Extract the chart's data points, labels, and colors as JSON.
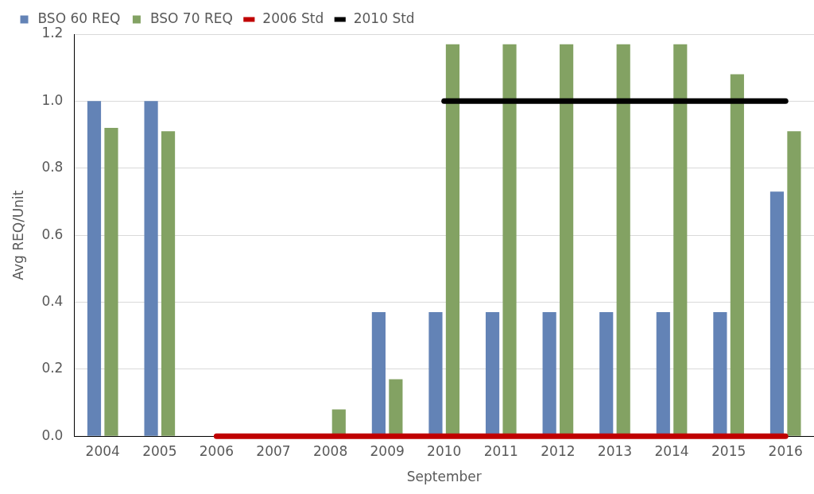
{
  "chart_data": {
    "type": "bar",
    "xlabel": "September",
    "ylabel": "Avg REQ/Unit",
    "categories": [
      "2004",
      "2005",
      "2006",
      "2007",
      "2008",
      "2009",
      "2010",
      "2011",
      "2012",
      "2013",
      "2014",
      "2015",
      "2016"
    ],
    "series": [
      {
        "name": "BSO 60 REQ",
        "color": "#6383b6",
        "values": [
          1.0,
          1.0,
          0,
          0,
          0,
          0.37,
          0.37,
          0.37,
          0.37,
          0.37,
          0.37,
          0.37,
          0.73
        ]
      },
      {
        "name": "BSO 70 REQ",
        "color": "#83a263",
        "values": [
          0.92,
          0.91,
          0,
          0,
          0.08,
          0.17,
          1.17,
          1.17,
          1.17,
          1.17,
          1.17,
          1.08,
          0.91
        ]
      },
      {
        "name": "2006 Std",
        "type": "line",
        "color": "#c00000",
        "values": [
          null,
          null,
          0,
          0,
          0,
          0,
          0,
          0,
          0,
          0,
          0,
          0,
          0
        ]
      },
      {
        "name": "2010 Std",
        "type": "line",
        "color": "#000000",
        "values": [
          null,
          null,
          null,
          null,
          null,
          null,
          1.0,
          1.0,
          1.0,
          1.0,
          1.0,
          1.0,
          1.0
        ]
      }
    ],
    "ylim": [
      0,
      1.2
    ],
    "yticks": [
      {
        "value": 0,
        "label": "0.0"
      },
      {
        "value": 0.2,
        "label": "0.2"
      },
      {
        "value": 0.4,
        "label": "0.4"
      },
      {
        "value": 0.6,
        "label": "0.6"
      },
      {
        "value": 0.8,
        "label": "0.8"
      },
      {
        "value": 1.0,
        "label": "1.0"
      },
      {
        "value": 1.2,
        "label": "1.2"
      }
    ],
    "grid": "y",
    "legend": "top",
    "marker": "none",
    "line_style": "solid"
  }
}
